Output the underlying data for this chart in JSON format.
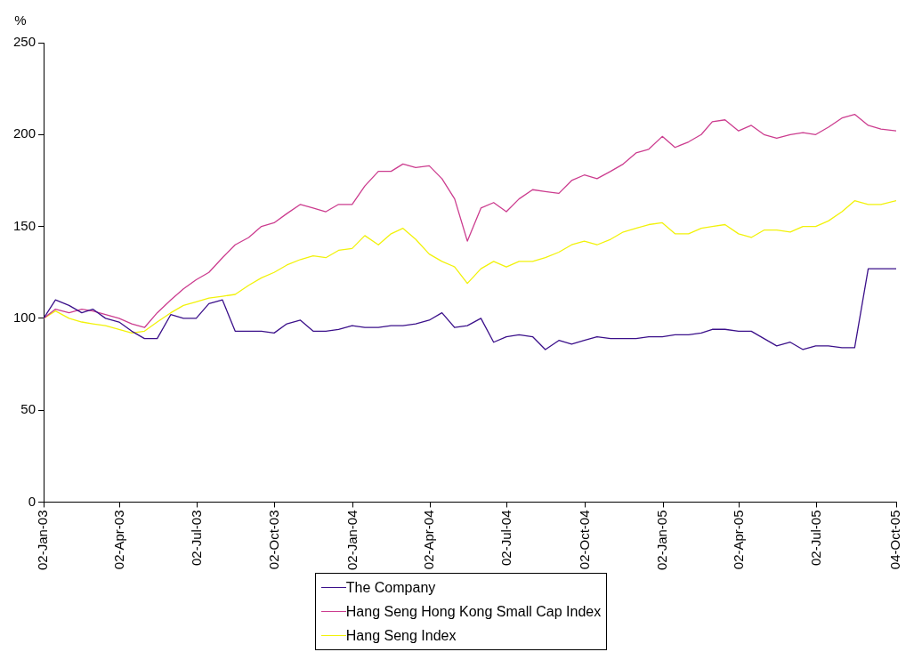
{
  "chart_data": {
    "type": "line",
    "ylabel": "%",
    "x": [
      "2003-01-02",
      "2003-01-16",
      "2003-02-01",
      "2003-02-16",
      "2003-03-01",
      "2003-03-16",
      "2003-04-01",
      "2003-04-16",
      "2003-05-01",
      "2003-05-16",
      "2003-06-01",
      "2003-06-16",
      "2003-07-01",
      "2003-07-16",
      "2003-08-01",
      "2003-08-16",
      "2003-09-01",
      "2003-09-16",
      "2003-10-01",
      "2003-10-16",
      "2003-11-01",
      "2003-11-16",
      "2003-12-01",
      "2003-12-16",
      "2004-01-01",
      "2004-01-16",
      "2004-02-01",
      "2004-02-16",
      "2004-03-01",
      "2004-03-16",
      "2004-04-01",
      "2004-04-16",
      "2004-05-01",
      "2004-05-16",
      "2004-06-01",
      "2004-06-16",
      "2004-07-01",
      "2004-07-16",
      "2004-08-01",
      "2004-08-16",
      "2004-09-01",
      "2004-09-16",
      "2004-10-01",
      "2004-10-16",
      "2004-11-01",
      "2004-11-16",
      "2004-12-01",
      "2004-12-16",
      "2005-01-01",
      "2005-01-16",
      "2005-02-01",
      "2005-02-16",
      "2005-03-01",
      "2005-03-16",
      "2005-04-01",
      "2005-04-16",
      "2005-05-01",
      "2005-05-16",
      "2005-06-01",
      "2005-06-16",
      "2005-07-01",
      "2005-07-16",
      "2005-08-01",
      "2005-08-16",
      "2005-09-01",
      "2005-09-16",
      "2005-10-04"
    ],
    "series": [
      {
        "name": "The Company",
        "color": "#3b108a",
        "values": [
          100,
          110,
          107,
          103,
          105,
          100,
          98,
          93,
          89,
          89,
          102,
          100,
          100,
          108,
          110,
          93,
          93,
          93,
          92,
          97,
          99,
          93,
          93,
          94,
          96,
          95,
          95,
          96,
          96,
          97,
          99,
          103,
          95,
          96,
          100,
          87,
          90,
          91,
          90,
          83,
          88,
          86,
          88,
          90,
          89,
          89,
          89,
          90,
          90,
          91,
          91,
          92,
          94,
          94,
          93,
          93,
          89,
          85,
          87,
          83,
          85,
          85,
          84,
          84,
          127,
          127,
          127
        ]
      },
      {
        "name": "Hang Seng Hong Kong Small Cap Index",
        "color": "#cc3d8f",
        "values": [
          100,
          105,
          103,
          105,
          104,
          102,
          100,
          97,
          95,
          103,
          110,
          116,
          121,
          125,
          133,
          140,
          144,
          150,
          152,
          157,
          162,
          160,
          158,
          162,
          162,
          172,
          180,
          180,
          184,
          182,
          183,
          176,
          165,
          142,
          160,
          163,
          158,
          165,
          170,
          169,
          168,
          175,
          178,
          176,
          180,
          184,
          190,
          192,
          199,
          193,
          196,
          200,
          207,
          208,
          202,
          205,
          200,
          198,
          200,
          201,
          200,
          204,
          209,
          211,
          205,
          203,
          202
        ]
      },
      {
        "name": "Hang Seng Index",
        "color": "#f2f20a",
        "values": [
          100,
          104,
          100,
          98,
          97,
          96,
          94,
          92,
          93,
          98,
          103,
          107,
          109,
          111,
          112,
          113,
          118,
          122,
          125,
          129,
          132,
          134,
          133,
          137,
          138,
          145,
          140,
          146,
          149,
          143,
          135,
          131,
          128,
          119,
          127,
          131,
          128,
          131,
          131,
          133,
          136,
          140,
          142,
          140,
          143,
          147,
          149,
          151,
          152,
          146,
          146,
          149,
          150,
          151,
          146,
          144,
          148,
          148,
          147,
          150,
          150,
          153,
          158,
          164,
          162,
          162,
          164
        ]
      }
    ],
    "xlim": [
      "2003-01-02",
      "2005-10-04"
    ],
    "xticks": [
      {
        "value": "2003-01-02",
        "label": "02-Jan-03"
      },
      {
        "value": "2003-04-02",
        "label": "02-Apr-03"
      },
      {
        "value": "2003-07-02",
        "label": "02-Jul-03"
      },
      {
        "value": "2003-10-02",
        "label": "02-Oct-03"
      },
      {
        "value": "2004-01-02",
        "label": "02-Jan-04"
      },
      {
        "value": "2004-04-02",
        "label": "02-Apr-04"
      },
      {
        "value": "2004-07-02",
        "label": "02-Jul-04"
      },
      {
        "value": "2004-10-02",
        "label": "02-Oct-04"
      },
      {
        "value": "2005-01-02",
        "label": "02-Jan-05"
      },
      {
        "value": "2005-04-02",
        "label": "02-Apr-05"
      },
      {
        "value": "2005-07-02",
        "label": "02-Jul-05"
      },
      {
        "value": "2005-10-04",
        "label": "04-Oct-05"
      }
    ],
    "ylim": [
      0,
      250
    ],
    "yticks": [
      0,
      50,
      100,
      150,
      200,
      250
    ],
    "legend": "bottom",
    "marker": "none",
    "line_style": "solid"
  }
}
